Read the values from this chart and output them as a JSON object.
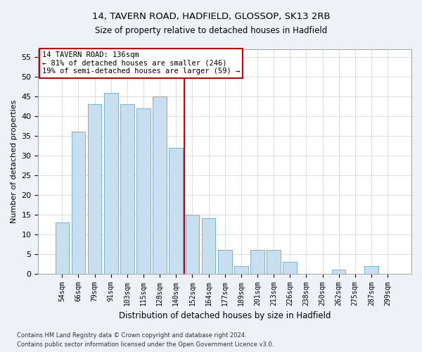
{
  "title1": "14, TAVERN ROAD, HADFIELD, GLOSSOP, SK13 2RB",
  "title2": "Size of property relative to detached houses in Hadfield",
  "xlabel": "Distribution of detached houses by size in Hadfield",
  "ylabel": "Number of detached properties",
  "categories": [
    "54sqm",
    "66sqm",
    "79sqm",
    "91sqm",
    "103sqm",
    "115sqm",
    "128sqm",
    "140sqm",
    "152sqm",
    "164sqm",
    "177sqm",
    "189sqm",
    "201sqm",
    "213sqm",
    "226sqm",
    "238sqm",
    "250sqm",
    "262sqm",
    "275sqm",
    "287sqm",
    "299sqm"
  ],
  "values": [
    13,
    36,
    43,
    46,
    43,
    42,
    45,
    32,
    15,
    14,
    6,
    2,
    6,
    6,
    3,
    0,
    0,
    1,
    0,
    2,
    0
  ],
  "bar_color": "#c8dff0",
  "bar_edge_color": "#7ab0d4",
  "vline_x": 7.5,
  "vline_color": "#cc0000",
  "ylim": [
    0,
    57
  ],
  "yticks": [
    0,
    5,
    10,
    15,
    20,
    25,
    30,
    35,
    40,
    45,
    50,
    55
  ],
  "annotation_title": "14 TAVERN ROAD: 136sqm",
  "annotation_line1": "← 81% of detached houses are smaller (246)",
  "annotation_line2": "19% of semi-detached houses are larger (59) →",
  "annotation_box_color": "#ffffff",
  "annotation_border_color": "#cc0000",
  "footer1": "Contains HM Land Registry data © Crown copyright and database right 2024.",
  "footer2": "Contains public sector information licensed under the Open Government Licence v3.0.",
  "bg_color": "#eef2f7",
  "plot_bg_color": "#ffffff",
  "grid_color": "#c8d0dc"
}
